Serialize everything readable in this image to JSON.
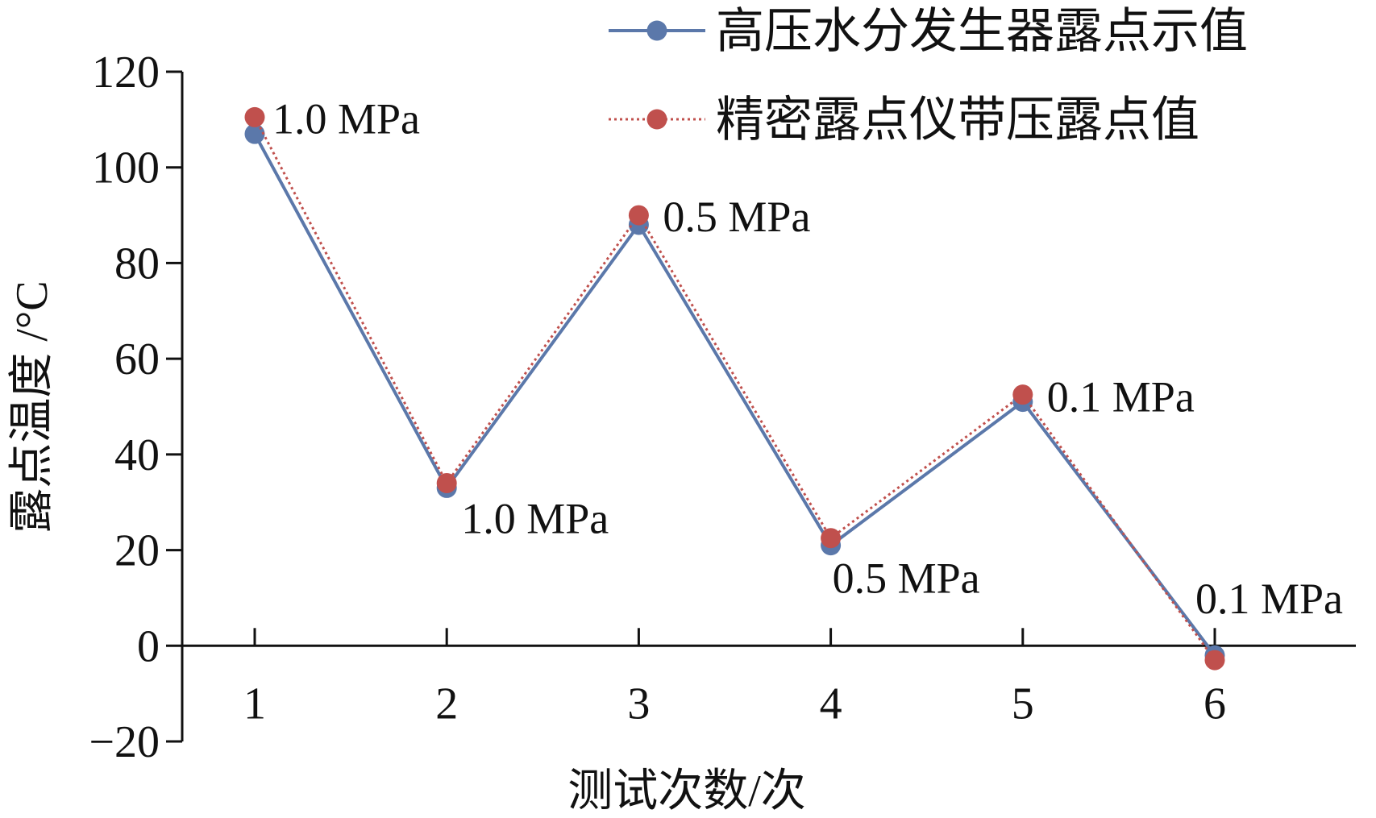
{
  "chart_data": {
    "type": "line",
    "x": [
      1,
      2,
      3,
      4,
      5,
      6
    ],
    "xlabel": "测试次数/次",
    "ylabel": "露点温度 /°C",
    "ylim": [
      -20,
      120
    ],
    "y_ticks": [
      -20,
      0,
      20,
      40,
      60,
      80,
      100,
      120
    ],
    "x_ticks": [
      1,
      2,
      3,
      4,
      5,
      6
    ],
    "grid": false,
    "legend_position": "top-right",
    "series": [
      {
        "name": "高压水分发生器露点示值",
        "values": [
          107,
          33,
          88,
          21,
          51,
          -2
        ],
        "color": "#5b78aa",
        "line_style": "solid",
        "marker": "circle"
      },
      {
        "name": "精密露点仪带压露点值",
        "values": [
          110.5,
          34,
          90,
          22.5,
          52.5,
          -3
        ],
        "color": "#c0504d",
        "line_style": "dotted",
        "marker": "circle"
      }
    ],
    "annotations": [
      {
        "x": 1,
        "text": "1.0 MPa"
      },
      {
        "x": 2,
        "text": "1.0 MPa"
      },
      {
        "x": 3,
        "text": "0.5 MPa"
      },
      {
        "x": 4,
        "text": "0.5 MPa"
      },
      {
        "x": 5,
        "text": "0.1 MPa"
      },
      {
        "x": 6,
        "text": "0.1 MPa"
      }
    ]
  }
}
